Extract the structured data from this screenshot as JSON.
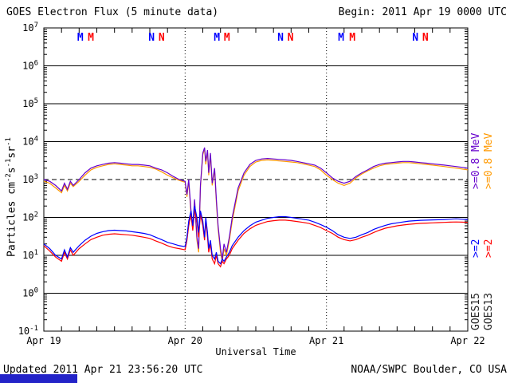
{
  "header": {
    "begin": "Begin: 2011 Apr 19 0000 UTC"
  },
  "footer": {
    "updated": "Updated 2011 Apr 21 23:56:20 UTC",
    "credit": "NOAA/SWPC Boulder, CO USA"
  },
  "legend": {
    "columns": [
      {
        "sat_label": "GOES15",
        "sat_color": "#222222",
        "e08_label": ">=0.8 MeV",
        "e08_color": "#6600cc",
        "e2_label": ">=2",
        "e2_color": "#0000ff"
      },
      {
        "sat_label": "GOES13",
        "sat_color": "#222222",
        "e08_label": ">=0.8 MeV",
        "e08_color": "#ff9900",
        "e2_label": ">=2",
        "e2_color": "#ff0000"
      }
    ]
  },
  "chart_data": {
    "type": "line",
    "title": "GOES Electron Flux (5 minute data)",
    "xlabel": "Universal Time",
    "ylabel": "Particles cm^{-2}s^{-1}sr^{-1}",
    "x_unit": "hours since 2011 Apr 19 0000 UTC",
    "x_range_hours": [
      0,
      72
    ],
    "y_log_range": [
      -1,
      7
    ],
    "grid": "solid horizontal line each decade, dashed at threshold, dotted vertical at day boundaries",
    "threshold": {
      "value": 1000,
      "style": "dashed"
    },
    "day_boundaries_hours": [
      24,
      48
    ],
    "x_ticks": [
      {
        "hour": 0,
        "label": "Apr 19"
      },
      {
        "hour": 24,
        "label": "Apr 20"
      },
      {
        "hour": 48,
        "label": "Apr 21"
      },
      {
        "hour": 72,
        "label": "Apr 22"
      }
    ],
    "top_markers": [
      {
        "label": "M",
        "hour": 6.2,
        "color": "#0000ff"
      },
      {
        "label": "M",
        "hour": 8.0,
        "color": "#ff0000"
      },
      {
        "label": "N",
        "hour": 18.3,
        "color": "#0000ff"
      },
      {
        "label": "N",
        "hour": 20.0,
        "color": "#ff0000"
      },
      {
        "label": "M",
        "hour": 29.4,
        "color": "#0000ff"
      },
      {
        "label": "M",
        "hour": 31.1,
        "color": "#ff0000"
      },
      {
        "label": "N",
        "hour": 40.2,
        "color": "#0000ff"
      },
      {
        "label": "N",
        "hour": 41.9,
        "color": "#ff0000"
      },
      {
        "label": "M",
        "hour": 50.5,
        "color": "#0000ff"
      },
      {
        "label": "M",
        "hour": 52.4,
        "color": "#ff0000"
      },
      {
        "label": "N",
        "hour": 63.1,
        "color": "#0000ff"
      },
      {
        "label": "N",
        "hour": 64.8,
        "color": "#ff0000"
      }
    ],
    "x_hours": [
      0,
      1,
      2,
      3,
      3.5,
      4,
      4.5,
      5,
      6,
      7,
      8,
      9,
      10,
      11,
      12,
      13,
      14,
      15,
      16,
      17,
      18,
      19,
      20,
      21,
      22,
      23,
      24,
      24.3,
      24.6,
      25,
      25.3,
      25.6,
      26,
      26.3,
      26.6,
      27,
      27.3,
      27.5,
      27.8,
      28,
      28.3,
      28.6,
      29,
      29.3,
      29.6,
      30,
      30.3,
      30.6,
      31,
      31.5,
      32,
      33,
      34,
      35,
      36,
      37,
      38,
      39,
      40,
      41,
      42,
      43,
      44,
      45,
      46,
      47,
      48,
      49,
      50,
      51,
      52,
      53,
      54,
      55,
      56,
      57,
      58,
      59,
      60,
      61,
      62,
      63,
      64,
      65,
      66,
      67,
      68,
      69,
      70,
      71,
      72
    ],
    "series": [
      {
        "key": "goes15-e08",
        "name": "GOES15 >=0.8 MeV",
        "color": "#6600cc",
        "values": [
          1000,
          900,
          700,
          500,
          800,
          550,
          900,
          700,
          1000,
          1500,
          2000,
          2300,
          2500,
          2700,
          2800,
          2700,
          2600,
          2500,
          2500,
          2400,
          2300,
          2000,
          1800,
          1500,
          1200,
          1000,
          900,
          400,
          1000,
          150,
          60,
          300,
          30,
          15,
          700,
          5000,
          7000,
          3000,
          6000,
          1500,
          5000,
          800,
          2000,
          300,
          60,
          15,
          8,
          20,
          12,
          30,
          100,
          600,
          1500,
          2500,
          3200,
          3500,
          3600,
          3500,
          3400,
          3300,
          3200,
          3000,
          2800,
          2600,
          2400,
          2000,
          1500,
          1100,
          900,
          800,
          900,
          1200,
          1500,
          1800,
          2200,
          2500,
          2700,
          2800,
          2900,
          3000,
          3000,
          2900,
          2800,
          2700,
          2600,
          2500,
          2400,
          2300,
          2200,
          2100,
          2000
        ]
      },
      {
        "key": "goes13-e08",
        "name": "GOES13 >=0.8 MeV",
        "color": "#ff9900",
        "values": [
          900,
          800,
          600,
          450,
          700,
          500,
          800,
          650,
          900,
          1300,
          1800,
          2100,
          2300,
          2500,
          2600,
          2500,
          2400,
          2300,
          2300,
          2200,
          2100,
          1900,
          1600,
          1300,
          1100,
          950,
          850,
          350,
          900,
          120,
          50,
          250,
          25,
          12,
          600,
          4500,
          6500,
          2500,
          5500,
          1300,
          4500,
          700,
          1800,
          250,
          50,
          12,
          7,
          15,
          10,
          25,
          80,
          500,
          1300,
          2200,
          2900,
          3200,
          3300,
          3200,
          3100,
          3000,
          2900,
          2800,
          2600,
          2400,
          2200,
          1800,
          1300,
          1000,
          800,
          700,
          800,
          1100,
          1400,
          1700,
          2000,
          2300,
          2500,
          2600,
          2700,
          2800,
          2800,
          2700,
          2600,
          2500,
          2400,
          2300,
          2200,
          2100,
          2000,
          1900,
          1800
        ]
      },
      {
        "key": "goes15-e2",
        "name": "GOES15 >=2 MeV",
        "color": "#0000ff",
        "values": [
          20,
          15,
          10,
          8,
          14,
          9,
          16,
          12,
          18,
          25,
          32,
          38,
          42,
          45,
          46,
          45,
          44,
          42,
          40,
          38,
          35,
          30,
          26,
          22,
          20,
          18,
          17,
          30,
          80,
          150,
          60,
          200,
          100,
          40,
          150,
          80,
          30,
          100,
          40,
          15,
          25,
          10,
          8,
          12,
          7,
          6,
          8,
          7,
          9,
          12,
          18,
          30,
          45,
          60,
          75,
          85,
          95,
          100,
          105,
          105,
          100,
          95,
          90,
          85,
          75,
          65,
          55,
          45,
          35,
          30,
          28,
          30,
          35,
          40,
          48,
          55,
          62,
          68,
          72,
          76,
          80,
          82,
          84,
          85,
          86,
          87,
          88,
          90,
          92,
          90,
          88
        ]
      },
      {
        "key": "goes13-e2",
        "name": "GOES13 >=2 MeV",
        "color": "#ff0000",
        "values": [
          18,
          13,
          9,
          7,
          12,
          8,
          14,
          10,
          15,
          20,
          26,
          30,
          34,
          36,
          37,
          36,
          35,
          34,
          32,
          30,
          28,
          24,
          21,
          18,
          16,
          15,
          14,
          25,
          60,
          120,
          45,
          160,
          80,
          30,
          120,
          60,
          25,
          80,
          30,
          12,
          20,
          8,
          6,
          10,
          6,
          5,
          7,
          6,
          8,
          10,
          15,
          25,
          38,
          50,
          62,
          70,
          78,
          82,
          85,
          85,
          82,
          78,
          74,
          70,
          62,
          54,
          45,
          38,
          30,
          26,
          24,
          26,
          30,
          34,
          40,
          46,
          52,
          56,
          60,
          63,
          66,
          68,
          70,
          71,
          72,
          73,
          74,
          75,
          76,
          75,
          74
        ]
      }
    ]
  }
}
